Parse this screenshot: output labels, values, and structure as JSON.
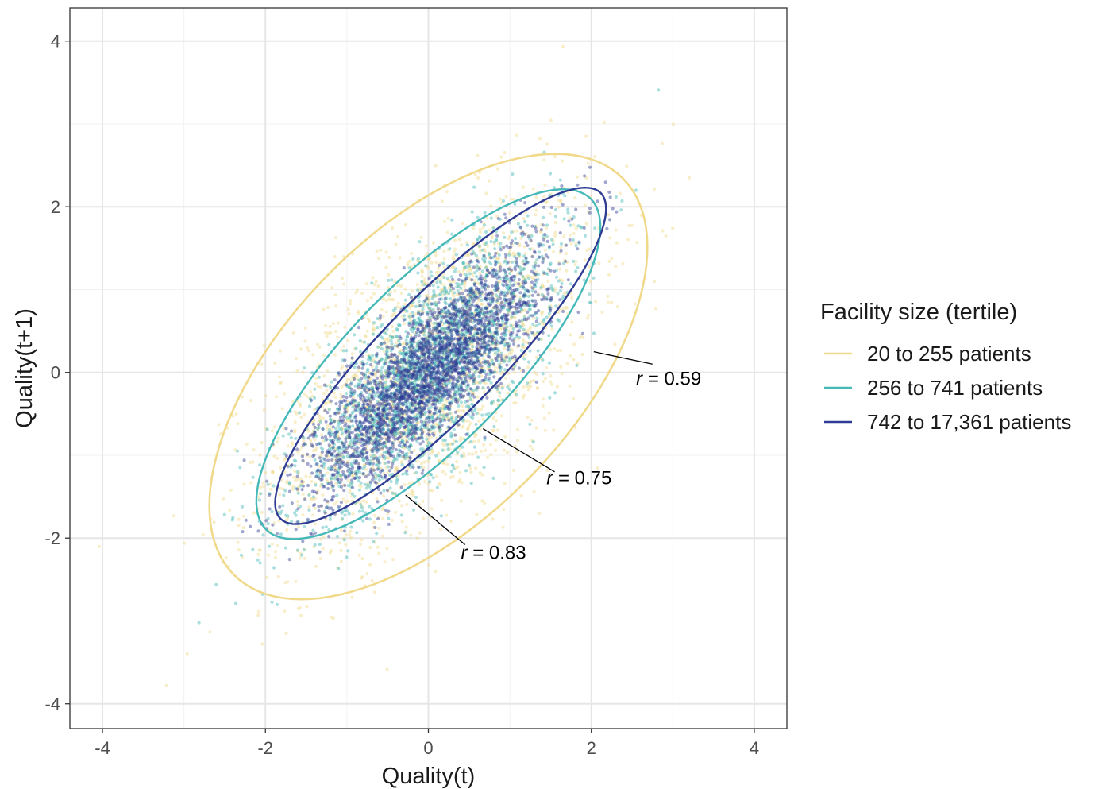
{
  "chart_data": {
    "type": "scatter",
    "xlabel": "Quality(t)",
    "ylabel": "Quality(t+1)",
    "xlim": [
      -4.4,
      4.4
    ],
    "ylim": [
      -4.3,
      4.4
    ],
    "xticks": [
      -4,
      -2,
      0,
      2,
      4
    ],
    "yticks": [
      -4,
      -2,
      0,
      2,
      4
    ],
    "xtick_labels": [
      "-4",
      "-2",
      "0",
      "2",
      "4"
    ],
    "ytick_labels": [
      "-4",
      "-2",
      "0",
      "2",
      "4"
    ],
    "grid": true,
    "legend": {
      "title": "Facility size (tertile)",
      "placement": "right"
    },
    "series": [
      {
        "name": "20 to 255 patients",
        "color": "#f0d98a",
        "point_count": 2200,
        "point_opacity": 0.45,
        "mean": [
          0.0,
          0.0
        ],
        "sd": [
          1.0,
          1.05
        ],
        "correlation": 0.59,
        "ellipse": {
          "center": [
            0.0,
            -0.05
          ],
          "semi_major": 3.38,
          "semi_minor": 1.74,
          "angle_deg": 45
        }
      },
      {
        "name": "256 to 741 patients",
        "color": "#45b8b8",
        "point_count": 2400,
        "point_opacity": 0.45,
        "mean": [
          0.0,
          0.0
        ],
        "sd": [
          0.78,
          0.82
        ],
        "correlation": 0.75,
        "ellipse": {
          "center": [
            0.0,
            0.1
          ],
          "semi_major": 2.82,
          "semi_minor": 0.98,
          "angle_deg": 45
        }
      },
      {
        "name": "742 to 17,361 patients",
        "color": "#2e3c94",
        "point_count": 2600,
        "point_opacity": 0.45,
        "mean": [
          0.0,
          0.0
        ],
        "sd": [
          0.7,
          0.72
        ],
        "correlation": 0.83,
        "ellipse": {
          "center": [
            0.15,
            0.2
          ],
          "semi_major": 2.78,
          "semi_minor": 0.72,
          "angle_deg": 45
        }
      }
    ],
    "annotations": [
      {
        "italic": "r",
        "text": " = 0.59",
        "label_at": [
          2.55,
          -0.15
        ],
        "line_from": [
          2.03,
          0.25
        ],
        "line_to": [
          2.75,
          0.1
        ]
      },
      {
        "italic": "r",
        "text": " = 0.75",
        "label_at": [
          1.45,
          -1.35
        ],
        "line_from": [
          0.67,
          -0.68
        ],
        "line_to": [
          1.55,
          -1.2
        ]
      },
      {
        "italic": "r",
        "text": " = 0.83",
        "label_at": [
          0.4,
          -2.25
        ],
        "line_from": [
          -0.28,
          -1.48
        ],
        "line_to": [
          0.45,
          -2.08
        ]
      }
    ]
  }
}
